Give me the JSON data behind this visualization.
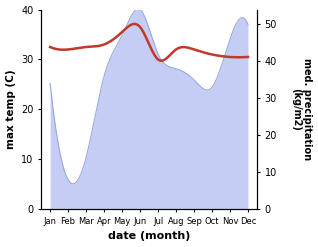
{
  "months": [
    "Jan",
    "Feb",
    "Mar",
    "Apr",
    "May",
    "Jun",
    "Jul",
    "Aug",
    "Sep",
    "Oct",
    "Nov",
    "Dec"
  ],
  "month_indices": [
    0,
    1,
    2,
    3,
    4,
    5,
    6,
    7,
    8,
    9,
    10,
    11
  ],
  "temp_max": [
    32.5,
    32.0,
    32.5,
    33.0,
    35.5,
    36.5,
    30.0,
    32.0,
    32.0,
    31.0,
    30.5,
    30.5
  ],
  "precipitation": [
    34,
    8,
    14,
    36,
    47,
    54,
    42,
    38,
    35,
    33,
    46,
    50
  ],
  "temp_color": "#c0392b",
  "precip_line_color": "#99aadd",
  "precip_fill_color": "#c5cdf5",
  "xlabel": "date (month)",
  "ylabel_left": "max temp (C)",
  "ylabel_right": "med. precipitation\n(kg/m2)",
  "ylim_left": [
    0,
    40
  ],
  "ylim_right": [
    0,
    54
  ],
  "right_ticks": [
    0,
    10,
    20,
    30,
    40,
    50
  ],
  "left_ticks": [
    0,
    10,
    20,
    30,
    40
  ],
  "background_color": "#ffffff",
  "figsize": [
    3.18,
    2.47
  ],
  "dpi": 100
}
